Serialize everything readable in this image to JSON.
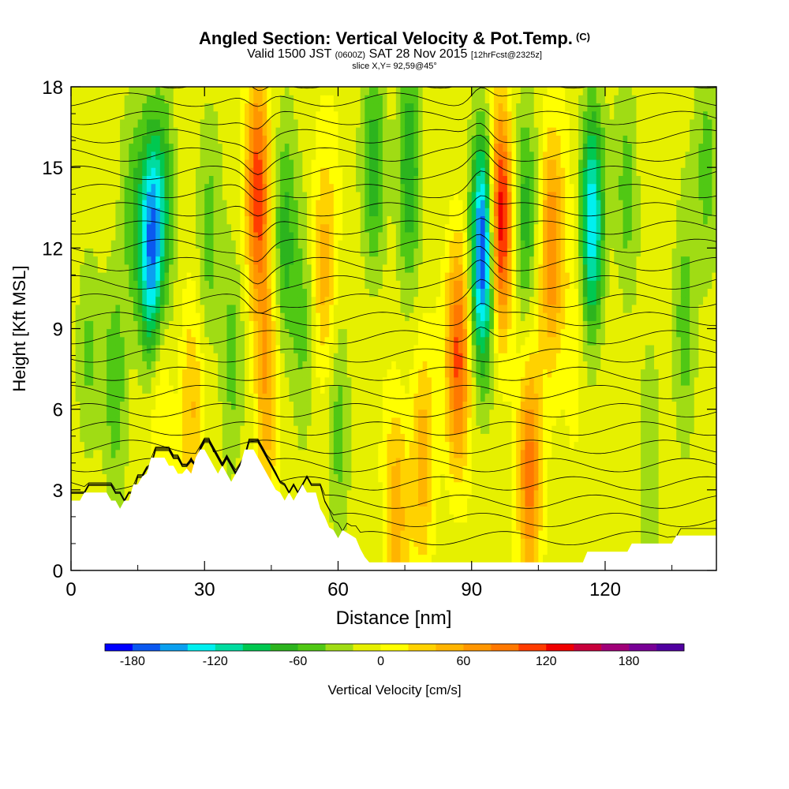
{
  "title": {
    "main": "Angled Section: Vertical Velocity & Pot.Temp.",
    "main_tag": "(C)",
    "valid_prefix": "Valid 1500 JST",
    "valid_z": "(0600Z)",
    "valid_date": "SAT 28 Nov 2015",
    "valid_fcst": "[12hrFcst@2325z]",
    "slice": "slice X,Y= 92,59@45°"
  },
  "chart_data": {
    "type": "heatmap",
    "xlabel": "Distance [nm]",
    "ylabel": "Height [Kft MSL]",
    "xlim": [
      0,
      145
    ],
    "ylim": [
      0,
      18
    ],
    "xticks": [
      "0",
      "30",
      "60",
      "90",
      "120"
    ],
    "yticks": [
      "0",
      "3",
      "6",
      "9",
      "12",
      "15",
      "18"
    ],
    "colorbar": {
      "label": "Vertical Velocity [cm/s]",
      "ticks": [
        "-180",
        "-120",
        "-60",
        "0",
        "60",
        "120",
        "180"
      ],
      "min": -200,
      "max": 220,
      "step": 20,
      "colors": [
        "#0000ff",
        "#0a58f0",
        "#0aa0f0",
        "#00f0f0",
        "#00dca0",
        "#00c850",
        "#2cb41e",
        "#50c814",
        "#a0dc14",
        "#e6f000",
        "#ffff00",
        "#ffd200",
        "#ffb400",
        "#ff9600",
        "#ff7800",
        "#ff3c00",
        "#f00000",
        "#c8003c",
        "#a00078",
        "#780096",
        "#5000a0"
      ]
    },
    "terrain_kft": [
      [
        0,
        2.6
      ],
      [
        2,
        2.6
      ],
      [
        3,
        2.9
      ],
      [
        8,
        2.9
      ],
      [
        9,
        2.6
      ],
      [
        10,
        2.6
      ],
      [
        11,
        2.3
      ],
      [
        12,
        2.6
      ],
      [
        13,
        2.6
      ],
      [
        14,
        3.2
      ],
      [
        15,
        3.2
      ],
      [
        16,
        3.5
      ],
      [
        17,
        3.6
      ],
      [
        18,
        4.2
      ],
      [
        21,
        4.2
      ],
      [
        22,
        3.9
      ],
      [
        23,
        3.9
      ],
      [
        24,
        3.6
      ],
      [
        25,
        3.6
      ],
      [
        26,
        3.8
      ],
      [
        27,
        3.6
      ],
      [
        28,
        4.2
      ],
      [
        29,
        4.5
      ],
      [
        30,
        4.5
      ],
      [
        31,
        4.2
      ],
      [
        32,
        3.9
      ],
      [
        33,
        3.6
      ],
      [
        34,
        3.9
      ],
      [
        35,
        3.6
      ],
      [
        36,
        3.3
      ],
      [
        37,
        3.6
      ],
      [
        38,
        3.9
      ],
      [
        39,
        4.5
      ],
      [
        41,
        4.5
      ],
      [
        42,
        4.2
      ],
      [
        43,
        3.9
      ],
      [
        44,
        3.6
      ],
      [
        45,
        3.3
      ],
      [
        46,
        3.0
      ],
      [
        47,
        2.9
      ],
      [
        48,
        2.6
      ],
      [
        49,
        2.9
      ],
      [
        50,
        2.6
      ],
      [
        51,
        2.9
      ],
      [
        52,
        3.2
      ],
      [
        53,
        2.9
      ],
      [
        55,
        2.9
      ],
      [
        56,
        2.3
      ],
      [
        57,
        2.0
      ],
      [
        58,
        1.6
      ],
      [
        59,
        1.5
      ],
      [
        60,
        1.2
      ],
      [
        61,
        1.5
      ],
      [
        62,
        1.4
      ],
      [
        64,
        1.2
      ],
      [
        65,
        0.8
      ],
      [
        66,
        0.5
      ],
      [
        67,
        0.3
      ],
      [
        115,
        0.3
      ],
      [
        116,
        0.7
      ],
      [
        125,
        0.7
      ],
      [
        126,
        1.0
      ],
      [
        135,
        1.0
      ],
      [
        136,
        1.3
      ],
      [
        145,
        1.3
      ]
    ],
    "vv_features": [
      {
        "x": 4.0,
        "z": 8.2,
        "w": -30
      },
      {
        "x": 10.0,
        "z": 7.0,
        "w": -50
      },
      {
        "x": 14.0,
        "z": 13.0,
        "w": -40
      },
      {
        "x": 18.0,
        "z": 12.0,
        "w": -150
      },
      {
        "x": 21.0,
        "z": 14.0,
        "w": -60
      },
      {
        "x": 20.0,
        "z": 6.5,
        "w": 40
      },
      {
        "x": 27.0,
        "z": 6.0,
        "w": 50
      },
      {
        "x": 31.0,
        "z": 12.0,
        "w": -40
      },
      {
        "x": 36.0,
        "z": 8.0,
        "w": -40
      },
      {
        "x": 42.0,
        "z": 14.0,
        "w": 120
      },
      {
        "x": 44.0,
        "z": 7.0,
        "w": 70
      },
      {
        "x": 48.0,
        "z": 12.0,
        "w": -60
      },
      {
        "x": 52.0,
        "z": 9.0,
        "w": -40
      },
      {
        "x": 57.0,
        "z": 11.0,
        "w": 60
      },
      {
        "x": 60.0,
        "z": 5.0,
        "w": -40
      },
      {
        "x": 68.0,
        "z": 15.0,
        "w": -60
      },
      {
        "x": 76.0,
        "z": 15.0,
        "w": -80
      },
      {
        "x": 73.0,
        "z": 2.2,
        "w": 60
      },
      {
        "x": 79.0,
        "z": 4.5,
        "w": 60
      },
      {
        "x": 87.0,
        "z": 8.0,
        "w": 110
      },
      {
        "x": 92.5,
        "z": 12.0,
        "w": -180
      },
      {
        "x": 96.5,
        "z": 13.0,
        "w": 150
      },
      {
        "x": 102.0,
        "z": 13.0,
        "w": -60
      },
      {
        "x": 103.0,
        "z": 3.5,
        "w": 100
      },
      {
        "x": 108.0,
        "z": 12.0,
        "w": 90
      },
      {
        "x": 113.0,
        "z": 9.0,
        "w": 30
      },
      {
        "x": 117.0,
        "z": 13.0,
        "w": -130
      },
      {
        "x": 125.0,
        "z": 14.0,
        "w": -40
      },
      {
        "x": 130.0,
        "z": 3.0,
        "w": -30
      },
      {
        "x": 138.0,
        "z": 9.0,
        "w": -50
      },
      {
        "x": 143.0,
        "z": 15.0,
        "w": -40
      }
    ]
  }
}
